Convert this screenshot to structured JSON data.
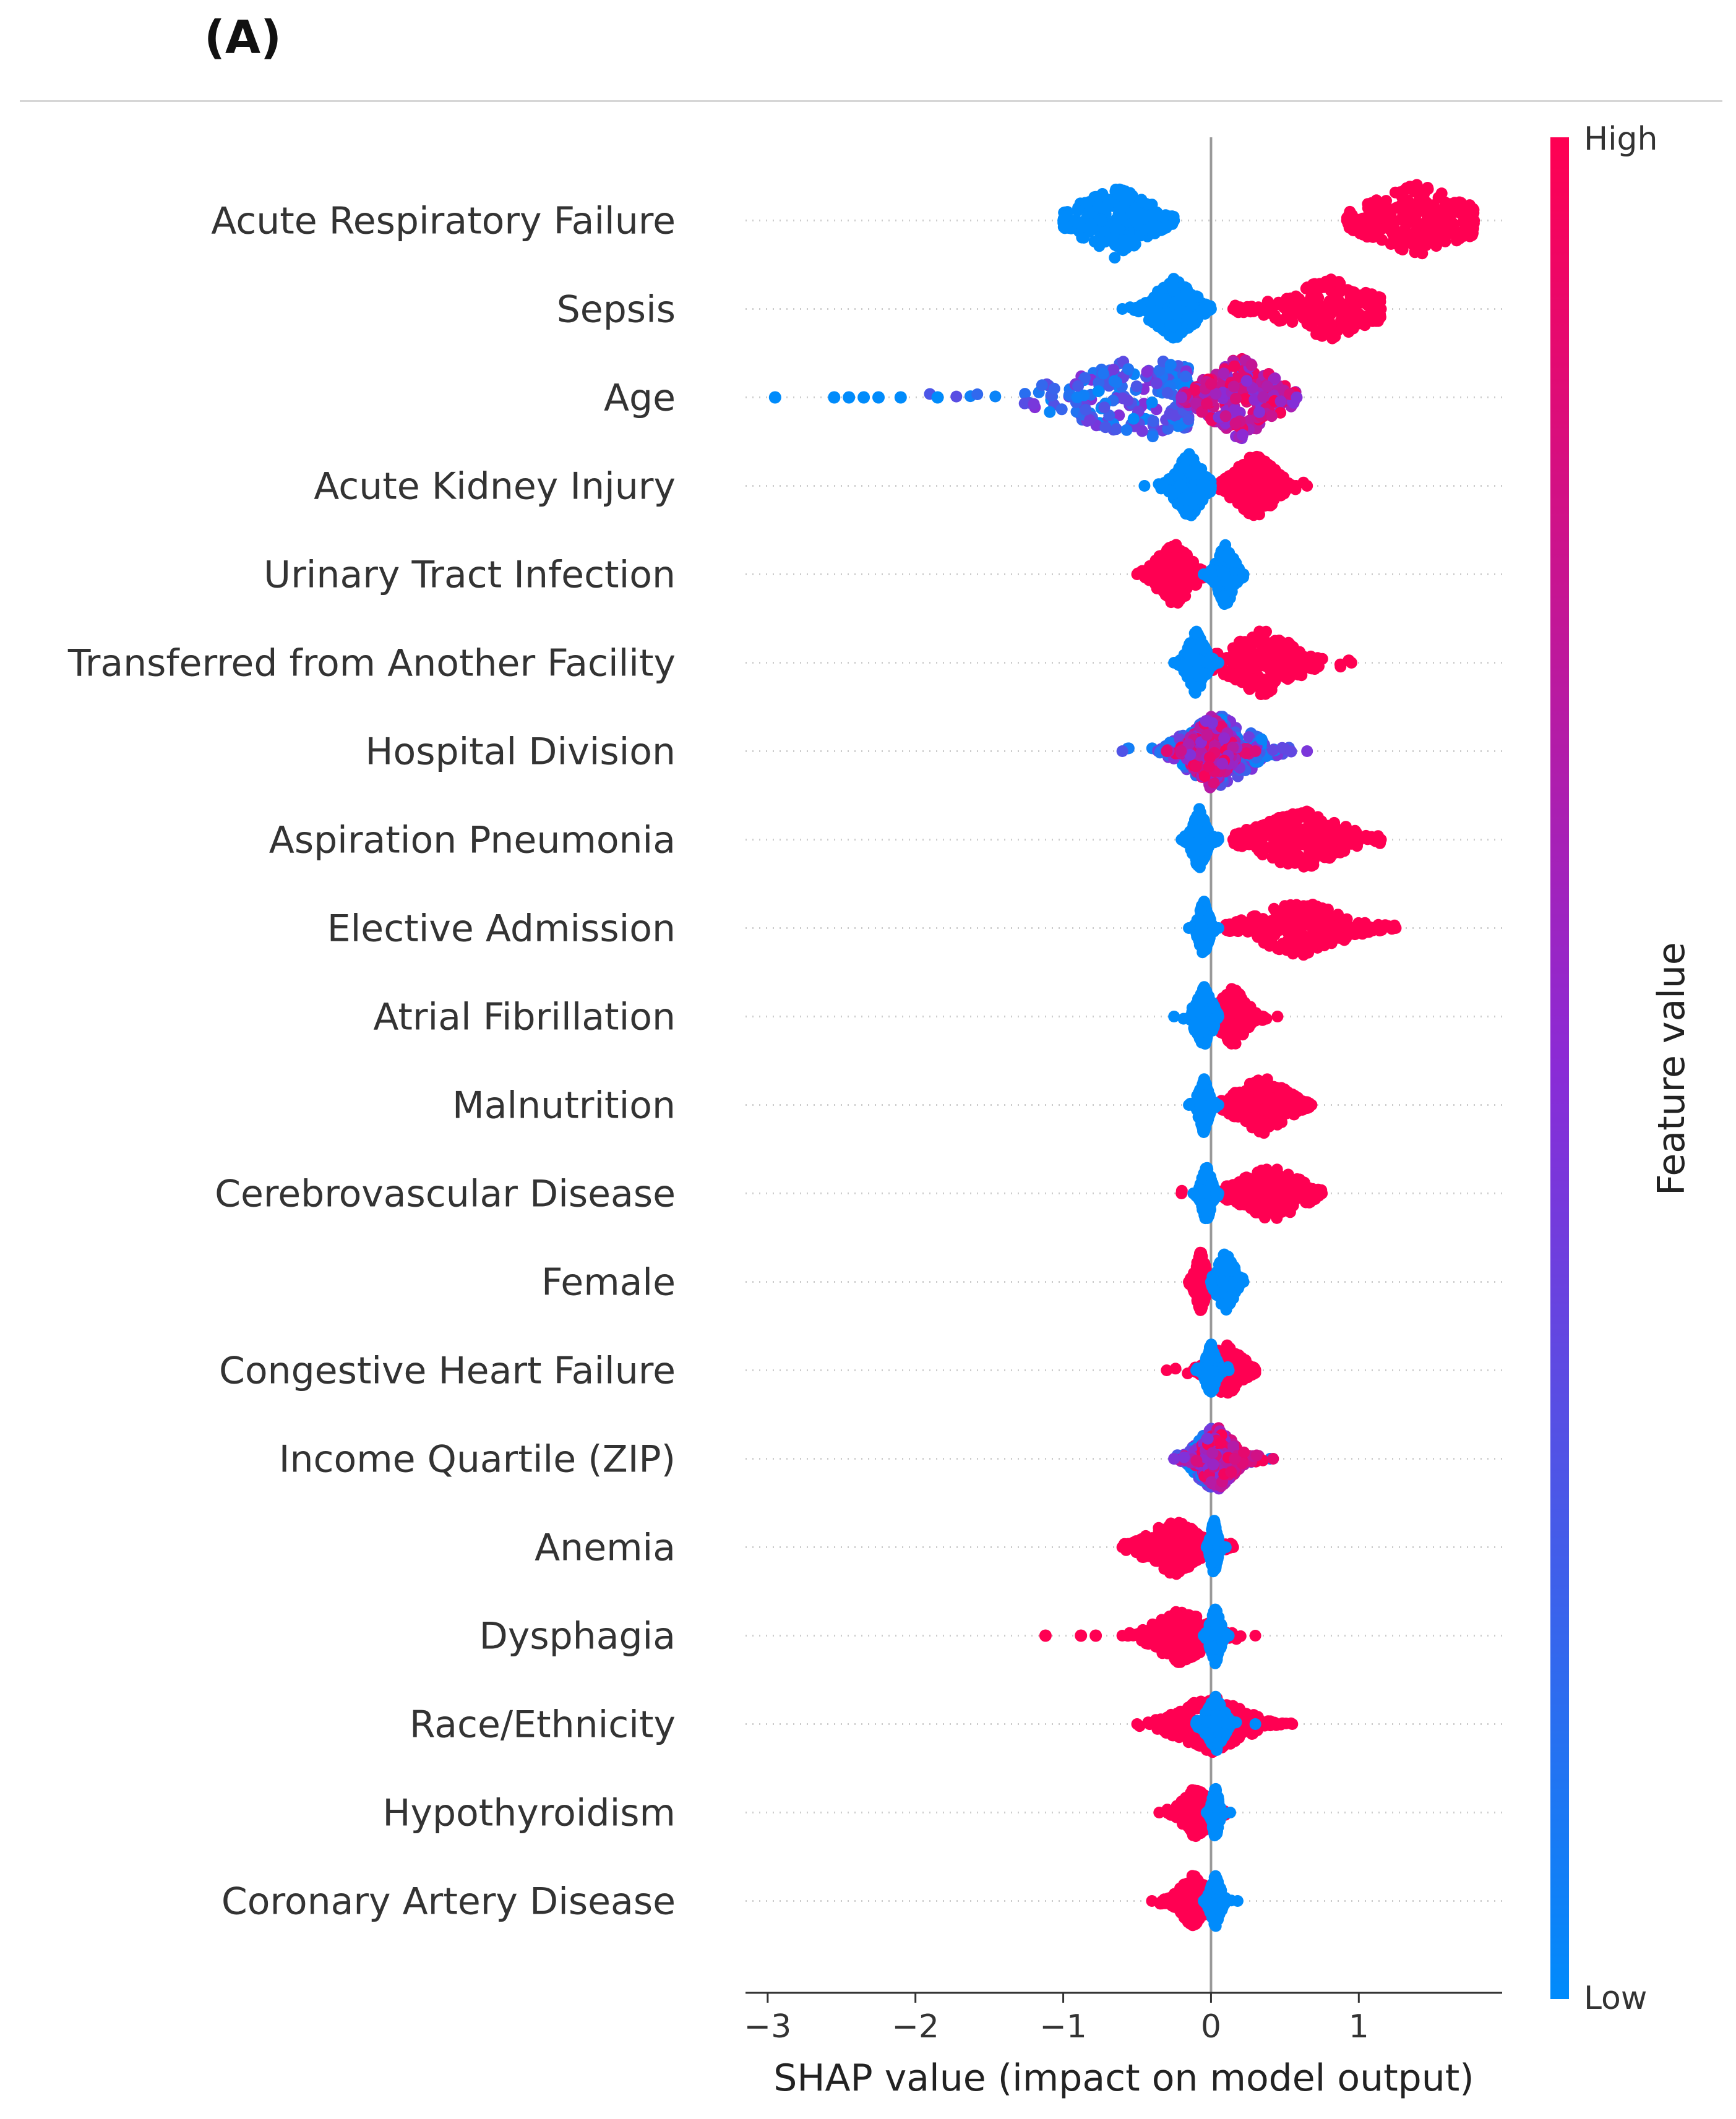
{
  "panel_label": "(A)",
  "chart_data": {
    "type": "scatter",
    "subtype": "shap-beeswarm-summary",
    "title": "",
    "xlabel": "SHAP value (impact on model output)",
    "ylabel": "",
    "xlim": [
      -3.15,
      1.97
    ],
    "xticks": [
      -3,
      -2,
      -1,
      0,
      1
    ],
    "xtick_labels": [
      "−3",
      "−2",
      "−1",
      "0",
      "1"
    ],
    "colorbar": {
      "label": "Feature value",
      "high_label": "High",
      "low_label": "Low",
      "high_color": "#ff0052",
      "mid_color": "#8a2bd6",
      "low_color": "#008bfb"
    },
    "features": [
      {
        "name": "Acute Respiratory Failure",
        "low": {
          "min": -1.0,
          "max": -0.25,
          "center": -0.65,
          "spread": 0.2
        },
        "high": {
          "min": 0.92,
          "max": 1.78,
          "center": 1.4,
          "spread": 0.28
        },
        "height": 0.85
      },
      {
        "name": "Sepsis",
        "low": {
          "min": -0.6,
          "max": 0.0,
          "center": -0.25,
          "spread": 0.12
        },
        "high": {
          "min": 0.15,
          "max": 1.15,
          "center": 0.8,
          "spread": 0.25
        },
        "height": 0.7
      },
      {
        "name": "Age",
        "low": {
          "min": -2.95,
          "max": -0.15,
          "center": -0.45,
          "spread": 0.45
        },
        "high": {
          "min": -0.2,
          "max": 0.58,
          "center": 0.2,
          "spread": 0.2
        },
        "height": 0.95,
        "mixed": true,
        "outliers": [
          -2.95,
          -2.55,
          -2.45,
          -2.35,
          -2.25,
          -2.1,
          -1.85
        ]
      },
      {
        "name": "Acute Kidney Injury",
        "low": {
          "min": -0.45,
          "max": 0.0,
          "center": -0.15,
          "spread": 0.08
        },
        "high": {
          "min": 0.05,
          "max": 0.65,
          "center": 0.3,
          "spread": 0.12
        },
        "height": 0.75
      },
      {
        "name": "Urinary Tract Infection",
        "low": {
          "min": -0.05,
          "max": 0.22,
          "center": 0.1,
          "spread": 0.05
        },
        "high": {
          "min": -0.5,
          "max": -0.05,
          "center": -0.25,
          "spread": 0.1
        },
        "height": 0.75
      },
      {
        "name": "Transferred from Another Facility",
        "low": {
          "min": -0.25,
          "max": 0.05,
          "center": -0.1,
          "spread": 0.05
        },
        "high": {
          "min": 0.0,
          "max": 0.95,
          "center": 0.35,
          "spread": 0.2
        },
        "height": 0.75
      },
      {
        "name": "Hospital Division",
        "low": {
          "min": -0.6,
          "max": 0.65,
          "center": 0.05,
          "spread": 0.2
        },
        "high": {
          "min": -0.3,
          "max": 0.3,
          "center": 0.0,
          "spread": 0.1
        },
        "height": 0.85,
        "mixed": true
      },
      {
        "name": "Aspiration Pneumonia",
        "low": {
          "min": -0.2,
          "max": 0.05,
          "center": -0.08,
          "spread": 0.04
        },
        "high": {
          "min": 0.15,
          "max": 1.15,
          "center": 0.6,
          "spread": 0.25
        },
        "height": 0.7
      },
      {
        "name": "Elective Admission",
        "low": {
          "min": -0.15,
          "max": 0.05,
          "center": -0.05,
          "spread": 0.03
        },
        "high": {
          "min": 0.1,
          "max": 1.25,
          "center": 0.6,
          "spread": 0.25
        },
        "height": 0.65
      },
      {
        "name": "Atrial Fibrillation",
        "low": {
          "min": -0.25,
          "max": 0.05,
          "center": -0.05,
          "spread": 0.05
        },
        "high": {
          "min": 0.05,
          "max": 0.45,
          "center": 0.15,
          "spread": 0.08
        },
        "height": 0.7
      },
      {
        "name": "Malnutrition",
        "low": {
          "min": -0.15,
          "max": 0.05,
          "center": -0.05,
          "spread": 0.03
        },
        "high": {
          "min": 0.05,
          "max": 0.68,
          "center": 0.35,
          "spread": 0.15
        },
        "height": 0.65
      },
      {
        "name": "Cerebrovascular Disease",
        "low": {
          "min": -0.12,
          "max": 0.05,
          "center": -0.03,
          "spread": 0.03
        },
        "high": {
          "min": -0.2,
          "max": 0.75,
          "center": 0.4,
          "spread": 0.18
        },
        "height": 0.65
      },
      {
        "name": "Female",
        "low": {
          "min": 0.0,
          "max": 0.22,
          "center": 0.1,
          "spread": 0.05
        },
        "high": {
          "min": -0.15,
          "max": 0.0,
          "center": -0.07,
          "spread": 0.03
        },
        "height": 0.7
      },
      {
        "name": "Congestive Heart Failure",
        "low": {
          "min": -0.1,
          "max": 0.12,
          "center": 0.0,
          "spread": 0.03
        },
        "high": {
          "min": -0.3,
          "max": 0.3,
          "center": 0.1,
          "spread": 0.1
        },
        "height": 0.6
      },
      {
        "name": "Income Quartile (ZIP)",
        "low": {
          "min": -0.25,
          "max": 0.4,
          "center": 0.0,
          "spread": 0.1
        },
        "high": {
          "min": -0.25,
          "max": 0.42,
          "center": 0.05,
          "spread": 0.1
        },
        "height": 0.7,
        "mixed": true
      },
      {
        "name": "Anemia",
        "low": {
          "min": -0.03,
          "max": 0.1,
          "center": 0.02,
          "spread": 0.02
        },
        "high": {
          "min": -0.6,
          "max": 0.15,
          "center": -0.25,
          "spread": 0.15
        },
        "height": 0.65
      },
      {
        "name": "Dysphagia",
        "low": {
          "min": -0.05,
          "max": 0.12,
          "center": 0.03,
          "spread": 0.03
        },
        "high": {
          "min": -0.6,
          "max": 0.3,
          "center": -0.2,
          "spread": 0.15
        },
        "height": 0.65,
        "outliers_high": [
          -1.12,
          -0.88,
          -0.78
        ]
      },
      {
        "name": "Race/Ethnicity",
        "low": {
          "min": -0.1,
          "max": 0.3,
          "center": 0.03,
          "spread": 0.05
        },
        "high": {
          "min": -0.5,
          "max": 0.55,
          "center": 0.0,
          "spread": 0.2
        },
        "height": 0.65
      },
      {
        "name": "Hypothyroidism",
        "low": {
          "min": -0.03,
          "max": 0.13,
          "center": 0.03,
          "spread": 0.02
        },
        "high": {
          "min": -0.35,
          "max": 0.1,
          "center": -0.1,
          "spread": 0.08
        },
        "height": 0.6
      },
      {
        "name": "Coronary Artery Disease",
        "low": {
          "min": -0.05,
          "max": 0.18,
          "center": 0.03,
          "spread": 0.03
        },
        "high": {
          "min": -0.4,
          "max": 0.1,
          "center": -0.12,
          "spread": 0.08
        },
        "height": 0.6
      }
    ]
  }
}
